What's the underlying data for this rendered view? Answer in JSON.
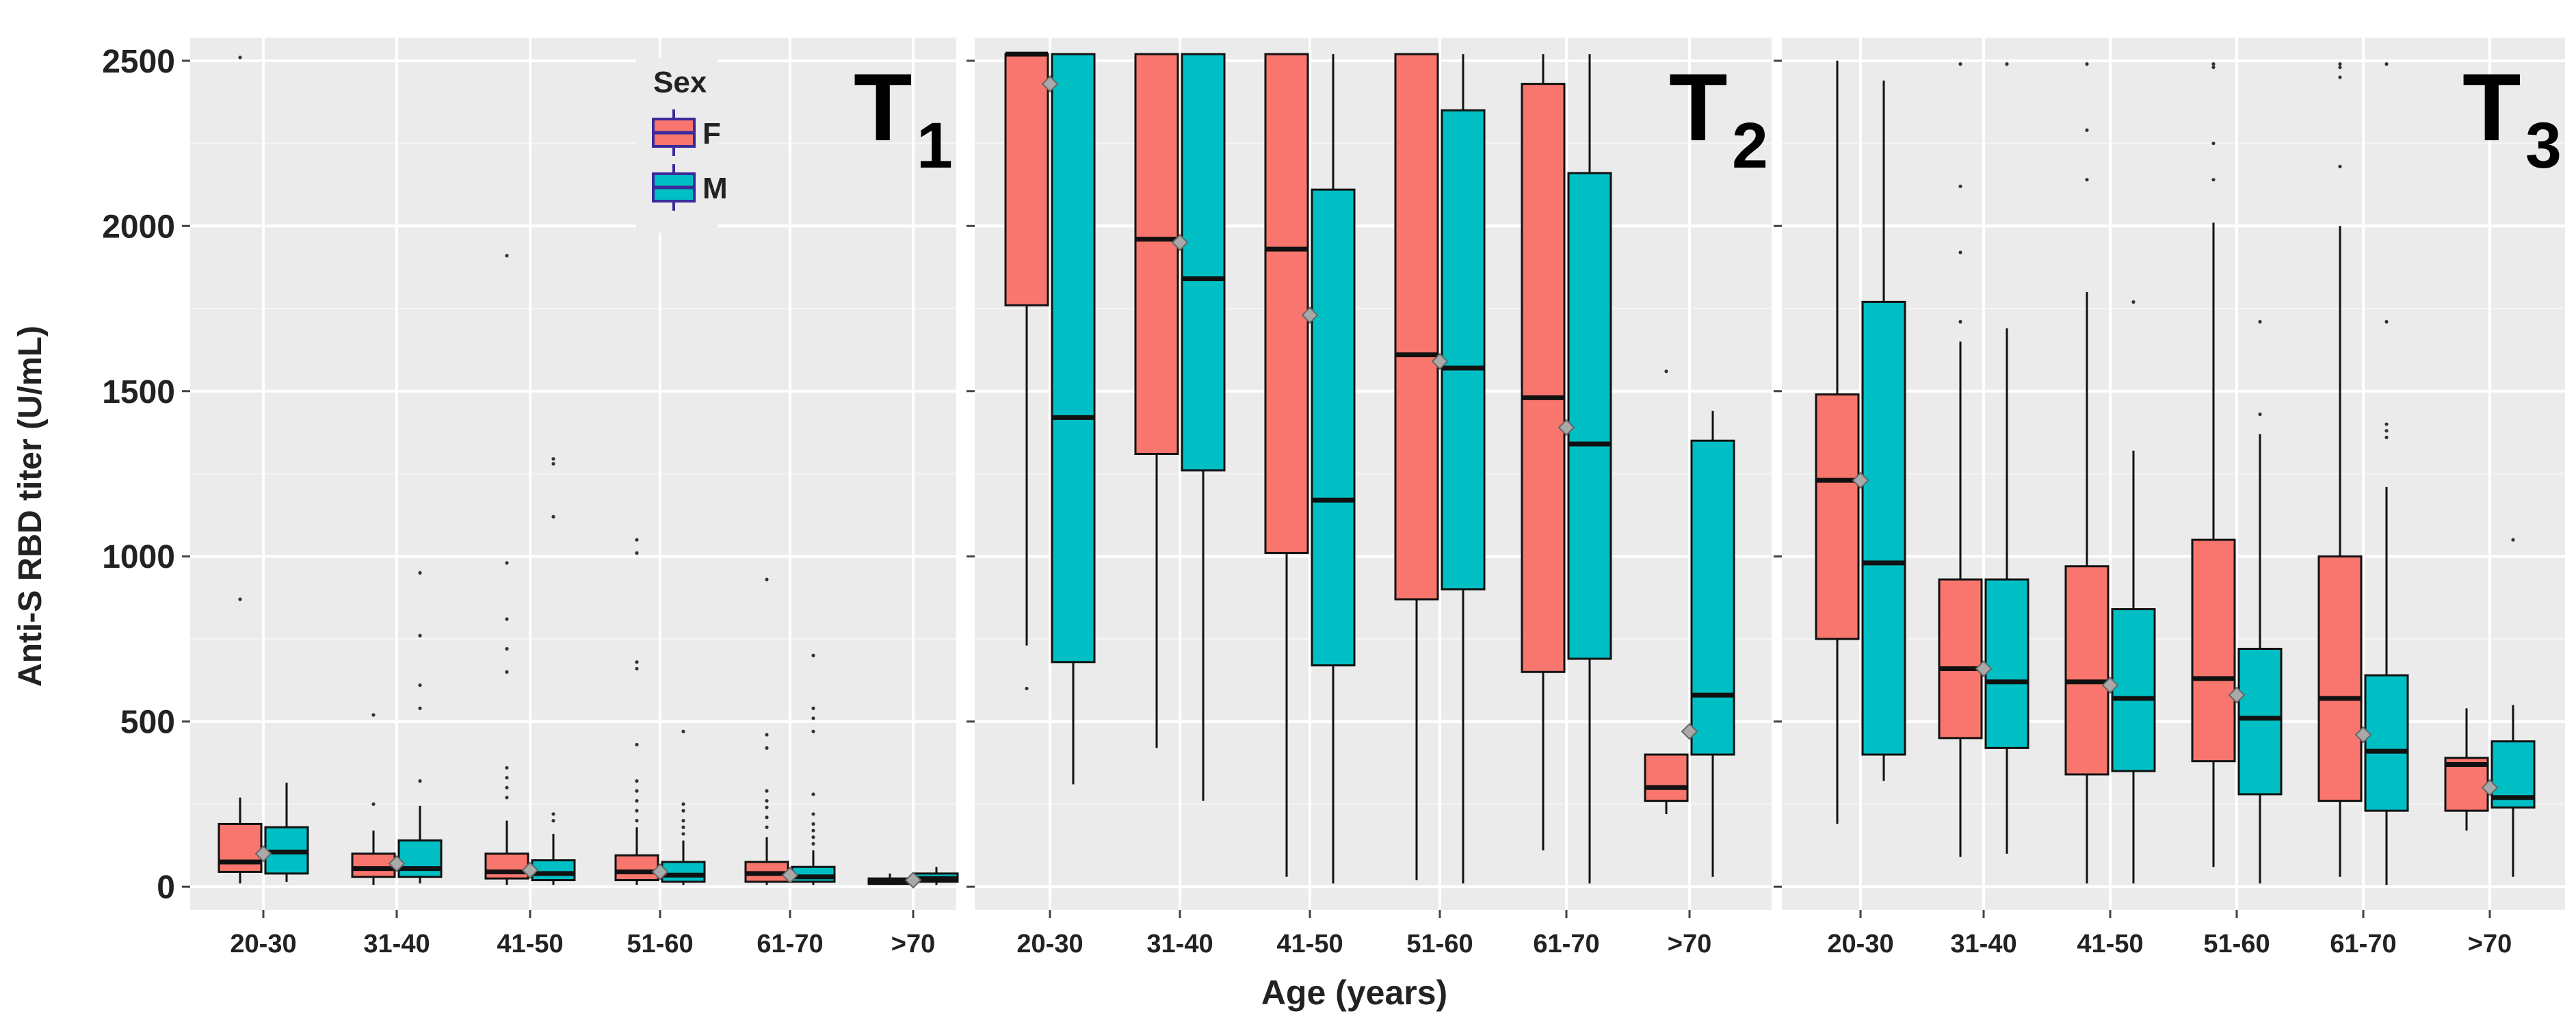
{
  "chart_data": {
    "type": "boxplot",
    "ylabel": "Anti-S RBD titer (U/mL)",
    "xlabel": "Age (years)",
    "ylim": [
      -70,
      2570
    ],
    "yticks": [
      0,
      500,
      1000,
      1500,
      2000,
      2500
    ],
    "categories": [
      "20-30",
      "31-40",
      "41-50",
      "51-60",
      "61-70",
      ">70"
    ],
    "colors": {
      "F": "#F8766D",
      "M": "#00BFC4",
      "panel_bg": "#EBEBEB",
      "grid": "#FFFFFF",
      "mean_marker": "#A9A9A9"
    },
    "legend": {
      "title": "Sex",
      "entries": [
        "F",
        "M"
      ],
      "position": "inside-top of first panel"
    },
    "panels": [
      {
        "title_main": "T",
        "title_sub": "1",
        "groups": [
          {
            "category": "20-30",
            "F": {
              "min": 10,
              "q1": 45,
              "median": 75,
              "q3": 190,
              "max": 270,
              "outliers": [
                870,
                2510
              ]
            },
            "M": {
              "min": 15,
              "q1": 40,
              "median": 105,
              "q3": 180,
              "max": 315,
              "outliers": []
            },
            "mean": 100
          },
          {
            "category": "31-40",
            "F": {
              "min": 5,
              "q1": 30,
              "median": 55,
              "q3": 100,
              "max": 170,
              "outliers": [
                250,
                520
              ]
            },
            "M": {
              "min": 10,
              "q1": 30,
              "median": 55,
              "q3": 140,
              "max": 245,
              "outliers": [
                320,
                540,
                610,
                760,
                950
              ]
            },
            "mean": 70
          },
          {
            "category": "41-50",
            "F": {
              "min": 5,
              "q1": 25,
              "median": 45,
              "q3": 100,
              "max": 200,
              "outliers": [
                270,
                300,
                330,
                360,
                650,
                720,
                810,
                980,
                1910
              ]
            },
            "M": {
              "min": 5,
              "q1": 20,
              "median": 40,
              "q3": 80,
              "max": 160,
              "outliers": [
                200,
                220,
                1120,
                1280,
                1295
              ]
            },
            "mean": 50
          },
          {
            "category": "51-60",
            "F": {
              "min": 5,
              "q1": 20,
              "median": 45,
              "q3": 95,
              "max": 180,
              "outliers": [
                200,
                230,
                260,
                290,
                320,
                430,
                660,
                680,
                1010,
                1050
              ]
            },
            "M": {
              "min": 5,
              "q1": 15,
              "median": 35,
              "q3": 75,
              "max": 140,
              "outliers": [
                160,
                180,
                200,
                230,
                250,
                470
              ]
            },
            "mean": 45
          },
          {
            "category": "61-70",
            "F": {
              "min": 5,
              "q1": 15,
              "median": 40,
              "q3": 75,
              "max": 150,
              "outliers": [
                180,
                210,
                240,
                260,
                290,
                420,
                460,
                930
              ]
            },
            "M": {
              "min": 5,
              "q1": 15,
              "median": 30,
              "q3": 60,
              "max": 110,
              "outliers": [
                130,
                150,
                170,
                190,
                220,
                280,
                470,
                510,
                540,
                700
              ]
            },
            "mean": 35
          },
          {
            "category": ">70",
            "F": {
              "min": 5,
              "q1": 8,
              "median": 15,
              "q3": 25,
              "max": 40,
              "outliers": []
            },
            "M": {
              "min": 5,
              "q1": 15,
              "median": 25,
              "q3": 40,
              "max": 60,
              "outliers": []
            },
            "mean": 20
          }
        ]
      },
      {
        "title_main": "T",
        "title_sub": "2",
        "groups": [
          {
            "category": "20-30",
            "F": {
              "min": 730,
              "q1": 1760,
              "median": 2520,
              "q3": 2520,
              "max": 2520,
              "outliers": [
                600
              ]
            },
            "M": {
              "min": 310,
              "q1": 680,
              "median": 1420,
              "q3": 2520,
              "max": 2520,
              "outliers": []
            },
            "mean": 2430
          },
          {
            "category": "31-40",
            "F": {
              "min": 420,
              "q1": 1310,
              "median": 1960,
              "q3": 2520,
              "max": 2520,
              "outliers": []
            },
            "M": {
              "min": 260,
              "q1": 1260,
              "median": 1840,
              "q3": 2520,
              "max": 2520,
              "outliers": []
            },
            "mean": 1950
          },
          {
            "category": "41-50",
            "F": {
              "min": 30,
              "q1": 1010,
              "median": 1930,
              "q3": 2520,
              "max": 2520,
              "outliers": []
            },
            "M": {
              "min": 10,
              "q1": 670,
              "median": 1170,
              "q3": 2110,
              "max": 2520,
              "outliers": []
            },
            "mean": 1730
          },
          {
            "category": "51-60",
            "F": {
              "min": 20,
              "q1": 870,
              "median": 1610,
              "q3": 2520,
              "max": 2520,
              "outliers": []
            },
            "M": {
              "min": 10,
              "q1": 900,
              "median": 1570,
              "q3": 2350,
              "max": 2520,
              "outliers": []
            },
            "mean": 1590
          },
          {
            "category": "61-70",
            "F": {
              "min": 110,
              "q1": 650,
              "median": 1480,
              "q3": 2430,
              "max": 2520,
              "outliers": []
            },
            "M": {
              "min": 10,
              "q1": 690,
              "median": 1340,
              "q3": 2160,
              "max": 2520,
              "outliers": []
            },
            "mean": 1390
          },
          {
            "category": ">70",
            "F": {
              "min": 220,
              "q1": 260,
              "median": 300,
              "q3": 400,
              "max": 400,
              "outliers": [
                1560
              ]
            },
            "M": {
              "min": 30,
              "q1": 400,
              "median": 580,
              "q3": 1350,
              "max": 1440,
              "outliers": []
            },
            "mean": 470
          }
        ]
      },
      {
        "title_main": "T",
        "title_sub": "3",
        "groups": [
          {
            "category": "20-30",
            "F": {
              "min": 190,
              "q1": 750,
              "median": 1230,
              "q3": 1490,
              "max": 2500,
              "outliers": []
            },
            "M": {
              "min": 320,
              "q1": 400,
              "median": 980,
              "q3": 1770,
              "max": 2440,
              "outliers": []
            },
            "mean": 1230
          },
          {
            "category": "31-40",
            "F": {
              "min": 90,
              "q1": 450,
              "median": 660,
              "q3": 930,
              "max": 1650,
              "outliers": [
                1710,
                1920,
                2120,
                2490
              ]
            },
            "M": {
              "min": 100,
              "q1": 420,
              "median": 620,
              "q3": 930,
              "max": 1690,
              "outliers": [
                2490
              ]
            },
            "mean": 660
          },
          {
            "category": "41-50",
            "F": {
              "min": 10,
              "q1": 340,
              "median": 620,
              "q3": 970,
              "max": 1800,
              "outliers": [
                2140,
                2290,
                2490
              ]
            },
            "M": {
              "min": 10,
              "q1": 350,
              "median": 570,
              "q3": 840,
              "max": 1320,
              "outliers": [
                1770
              ]
            },
            "mean": 610
          },
          {
            "category": "51-60",
            "F": {
              "min": 60,
              "q1": 380,
              "median": 630,
              "q3": 1050,
              "max": 2010,
              "outliers": [
                2140,
                2250,
                2480,
                2490
              ]
            },
            "M": {
              "min": 10,
              "q1": 280,
              "median": 510,
              "q3": 720,
              "max": 1370,
              "outliers": [
                1430,
                1710
              ]
            },
            "mean": 580
          },
          {
            "category": "61-70",
            "F": {
              "min": 30,
              "q1": 260,
              "median": 570,
              "q3": 1000,
              "max": 2000,
              "outliers": [
                2180,
                2450,
                2480,
                2490
              ]
            },
            "M": {
              "min": 5,
              "q1": 230,
              "median": 410,
              "q3": 640,
              "max": 1210,
              "outliers": [
                1360,
                1380,
                1400,
                1710,
                2490
              ]
            },
            "mean": 460
          },
          {
            "category": ">70",
            "F": {
              "min": 170,
              "q1": 230,
              "median": 370,
              "q3": 390,
              "max": 540,
              "outliers": []
            },
            "M": {
              "min": 30,
              "q1": 240,
              "median": 270,
              "q3": 440,
              "max": 550,
              "outliers": [
                1050
              ]
            },
            "mean": 300
          }
        ]
      }
    ]
  }
}
